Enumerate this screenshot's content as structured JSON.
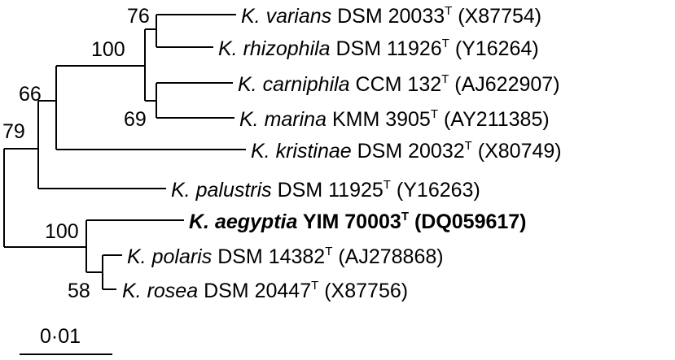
{
  "tree": {
    "taxa": [
      {
        "id": "varians",
        "genus": "K.",
        "species": "varians",
        "strain": "DSM 20033",
        "type_mark": "T",
        "accession": "(X87754)",
        "bold": false
      },
      {
        "id": "rhizophila",
        "genus": "K.",
        "species": "rhizophila",
        "strain": "DSM 11926",
        "type_mark": "T",
        "accession": "(Y16264)",
        "bold": false
      },
      {
        "id": "carniphila",
        "genus": "K.",
        "species": "carniphila",
        "strain": "CCM 132",
        "type_mark": "T",
        "accession": "(AJ622907)",
        "bold": false
      },
      {
        "id": "marina",
        "genus": "K.",
        "species": "marina",
        "strain": "KMM 3905",
        "type_mark": "T",
        "accession": "(AY211385)",
        "bold": false
      },
      {
        "id": "kristinae",
        "genus": "K.",
        "species": "kristinae",
        "strain": "DSM 20032",
        "type_mark": "T",
        "accession": "(X80749)",
        "bold": false
      },
      {
        "id": "palustris",
        "genus": "K.",
        "species": "palustris",
        "strain": "DSM 11925",
        "type_mark": "T",
        "accession": "(Y16263)",
        "bold": false
      },
      {
        "id": "aegyptia",
        "genus": "K.",
        "species": "aegyptia",
        "strain": "YIM 70003",
        "type_mark": "T",
        "accession": "(DQ059617)",
        "bold": true
      },
      {
        "id": "polaris",
        "genus": "K.",
        "species": "polaris",
        "strain": "DSM 14382",
        "type_mark": "T",
        "accession": "(AJ278868)",
        "bold": false
      },
      {
        "id": "rosea",
        "genus": "K.",
        "species": "rosea",
        "strain": "DSM 20447",
        "type_mark": "T",
        "accession": "(X87756)",
        "bold": false
      }
    ],
    "bootstrap": {
      "varians_rhizophila": "76",
      "varians_clade": "100",
      "carniphila_marina": "69",
      "kristinae_clade": "66",
      "root_upper": "79",
      "aegyptia_clade": "100",
      "polaris_rosea": "58"
    },
    "scale_bar": {
      "label": "0·01",
      "value": 0.01
    }
  }
}
